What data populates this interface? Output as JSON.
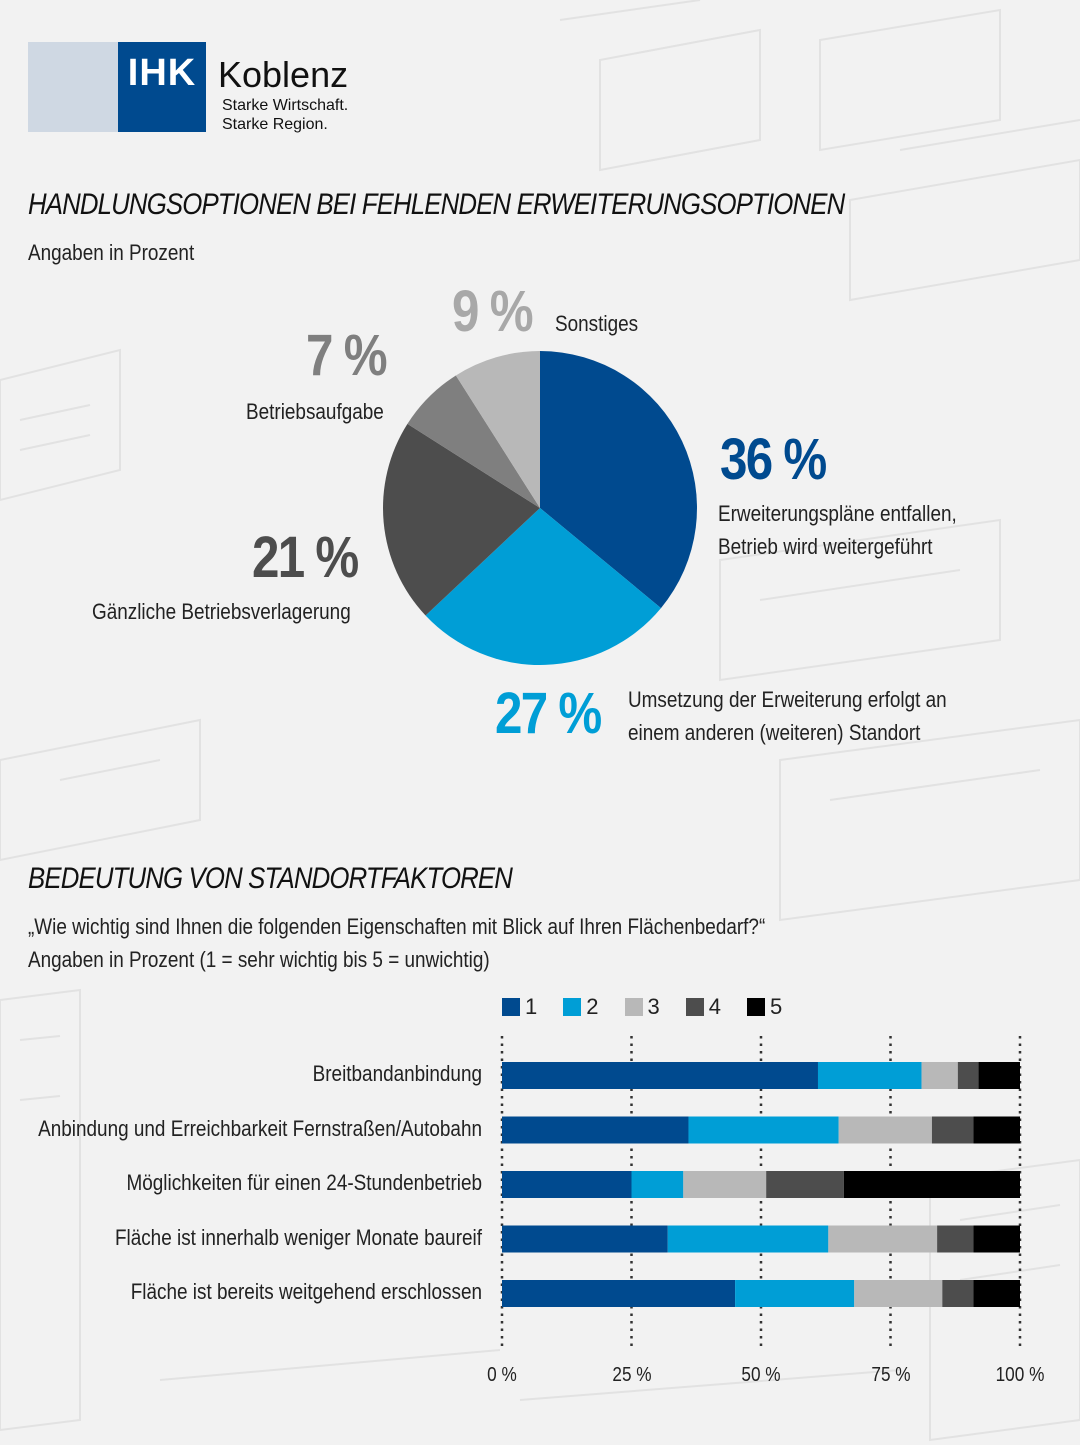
{
  "logo": {
    "abbr": "IHK",
    "city": "Koblenz",
    "tagline1": "Starke Wirtschaft.",
    "tagline2": "Starke Region."
  },
  "section1": {
    "title": "HANDLUNGSOPTIONEN BEI FEHLENDEN ERWEITERUNGSOPTIONEN",
    "subtitle": "Angaben in Prozent"
  },
  "section2": {
    "title": "BEDEUTUNG VON STANDORTFAKTOREN",
    "question": "„Wie wichtig sind Ihnen die folgenden Eigenschaften mit Blick auf Ihren Flächenbedarf?“",
    "subtitle": "Angaben in Prozent (1 = sehr wichtig bis 5 = unwichtig)"
  },
  "colors": {
    "brand": "#004a8f",
    "bg": "#f2f2f2"
  },
  "chart_data": [
    {
      "type": "pie",
      "title": "HANDLUNGSOPTIONEN BEI FEHLENDEN ERWEITERUNGSOPTIONEN",
      "slices": [
        {
          "label_lines": [
            "Erweiterungspläne entfallen,",
            "Betrieb wird weitergeführt"
          ],
          "value": 36,
          "display": "36 %",
          "color": "#004a8f"
        },
        {
          "label_lines": [
            "Umsetzung der Erweiterung erfolgt an",
            "einem anderen (weiteren) Standort"
          ],
          "value": 27,
          "display": "27 %",
          "color": "#009ed6"
        },
        {
          "label_lines": [
            "Gänzliche Betriebsverlagerung"
          ],
          "value": 21,
          "display": "21 %",
          "color": "#4d4d4d"
        },
        {
          "label_lines": [
            "Betriebsaufgabe"
          ],
          "value": 7,
          "display": "7 %",
          "color": "#7f7f7f"
        },
        {
          "label_lines": [
            "Sonstiges"
          ],
          "value": 9,
          "display": "9 %",
          "color": "#b8b8b8"
        }
      ]
    },
    {
      "type": "bar",
      "stacked": true,
      "orientation": "horizontal",
      "title": "BEDEUTUNG VON STANDORTFAKTOREN",
      "categories": [
        "Breitbandanbindung",
        "Anbindung und Erreichbarkeit Fernstraßen/Autobahn",
        "Möglichkeiten für einen 24-Stundenbetrieb",
        "Fläche ist innerhalb weniger Monate baureif",
        "Fläche ist bereits weitgehend erschlossen"
      ],
      "series": [
        {
          "name": "1",
          "color": "#004a8f",
          "values": [
            61,
            36,
            25,
            32,
            45
          ]
        },
        {
          "name": "2",
          "color": "#009ed6",
          "values": [
            20,
            29,
            10,
            31,
            23
          ]
        },
        {
          "name": "3",
          "color": "#b8b8b8",
          "values": [
            7,
            18,
            16,
            21,
            17
          ]
        },
        {
          "name": "4",
          "color": "#4d4d4d",
          "values": [
            4,
            8,
            15,
            7,
            6
          ]
        },
        {
          "name": "5",
          "color": "#000000",
          "values": [
            8,
            9,
            34,
            9,
            9
          ]
        }
      ],
      "xlim": [
        0,
        100
      ],
      "tick_labels": [
        "0 %",
        "25 %",
        "50 %",
        "75 %",
        "100 %"
      ],
      "legend_position": "top",
      "grid": "dotted vertical"
    }
  ]
}
